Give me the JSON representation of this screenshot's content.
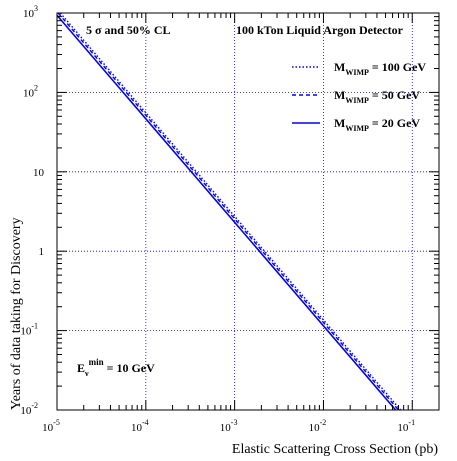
{
  "chart_data": {
    "type": "line",
    "title": "",
    "xlabel": "Elastic Scattering Cross Section (pb)",
    "ylabel": "Years of data taking for Discovery",
    "xscale": "log",
    "yscale": "log",
    "xlim": [
      1e-05,
      0.2
    ],
    "ylim": [
      0.01,
      1000
    ],
    "grid": true,
    "legend_position": "top-right",
    "x_ticks": [
      {
        "value": 1e-05,
        "base": "10",
        "exp": "-5"
      },
      {
        "value": 0.0001,
        "base": "10",
        "exp": "-4"
      },
      {
        "value": 0.001,
        "base": "10",
        "exp": "-3"
      },
      {
        "value": 0.01,
        "base": "10",
        "exp": "-2"
      },
      {
        "value": 0.1,
        "base": "10",
        "exp": "-1"
      }
    ],
    "y_ticks": [
      {
        "value": 0.01,
        "base": "10",
        "exp": "-2"
      },
      {
        "value": 0.1,
        "base": "10",
        "exp": "-1"
      },
      {
        "value": 1,
        "base": "1",
        "exp": ""
      },
      {
        "value": 10,
        "base": "10",
        "exp": ""
      },
      {
        "value": 100,
        "base": "10",
        "exp": "2"
      },
      {
        "value": 1000,
        "base": "10",
        "exp": "3"
      }
    ],
    "series": [
      {
        "name": "M_WIMP = 100 GeV",
        "label_main": "M",
        "label_sub": "WIMP",
        "label_rest": " = 100 GeV",
        "style": "dotted",
        "x": [
          1.09e-05,
          0.074
        ],
        "y": [
          1000,
          0.01
        ]
      },
      {
        "name": "M_WIMP = 50 GeV",
        "label_main": "M",
        "label_sub": "WIMP",
        "label_rest": " =  50 GeV",
        "style": "dashed",
        "x": [
          1.03e-05,
          0.07
        ],
        "y": [
          1000,
          0.01
        ]
      },
      {
        "name": "M_WIMP = 20 GeV",
        "label_main": "M",
        "label_sub": "WIMP",
        "label_rest": " =  20 GeV",
        "style": "solid",
        "x": [
          9.5e-06,
          0.065
        ],
        "y": [
          1000,
          0.01
        ]
      }
    ],
    "annotations": {
      "cl_label": "5 σ and 50% CL",
      "detector_label": "100 kTon Liquid Argon Detector",
      "threshold_main": "E",
      "threshold_sub": "ν",
      "threshold_sup": "min",
      "threshold_rest": " = 10 GeV"
    },
    "colors": {
      "series": "#0000ff",
      "grid": "#0000ff",
      "axis": "#000000"
    }
  }
}
